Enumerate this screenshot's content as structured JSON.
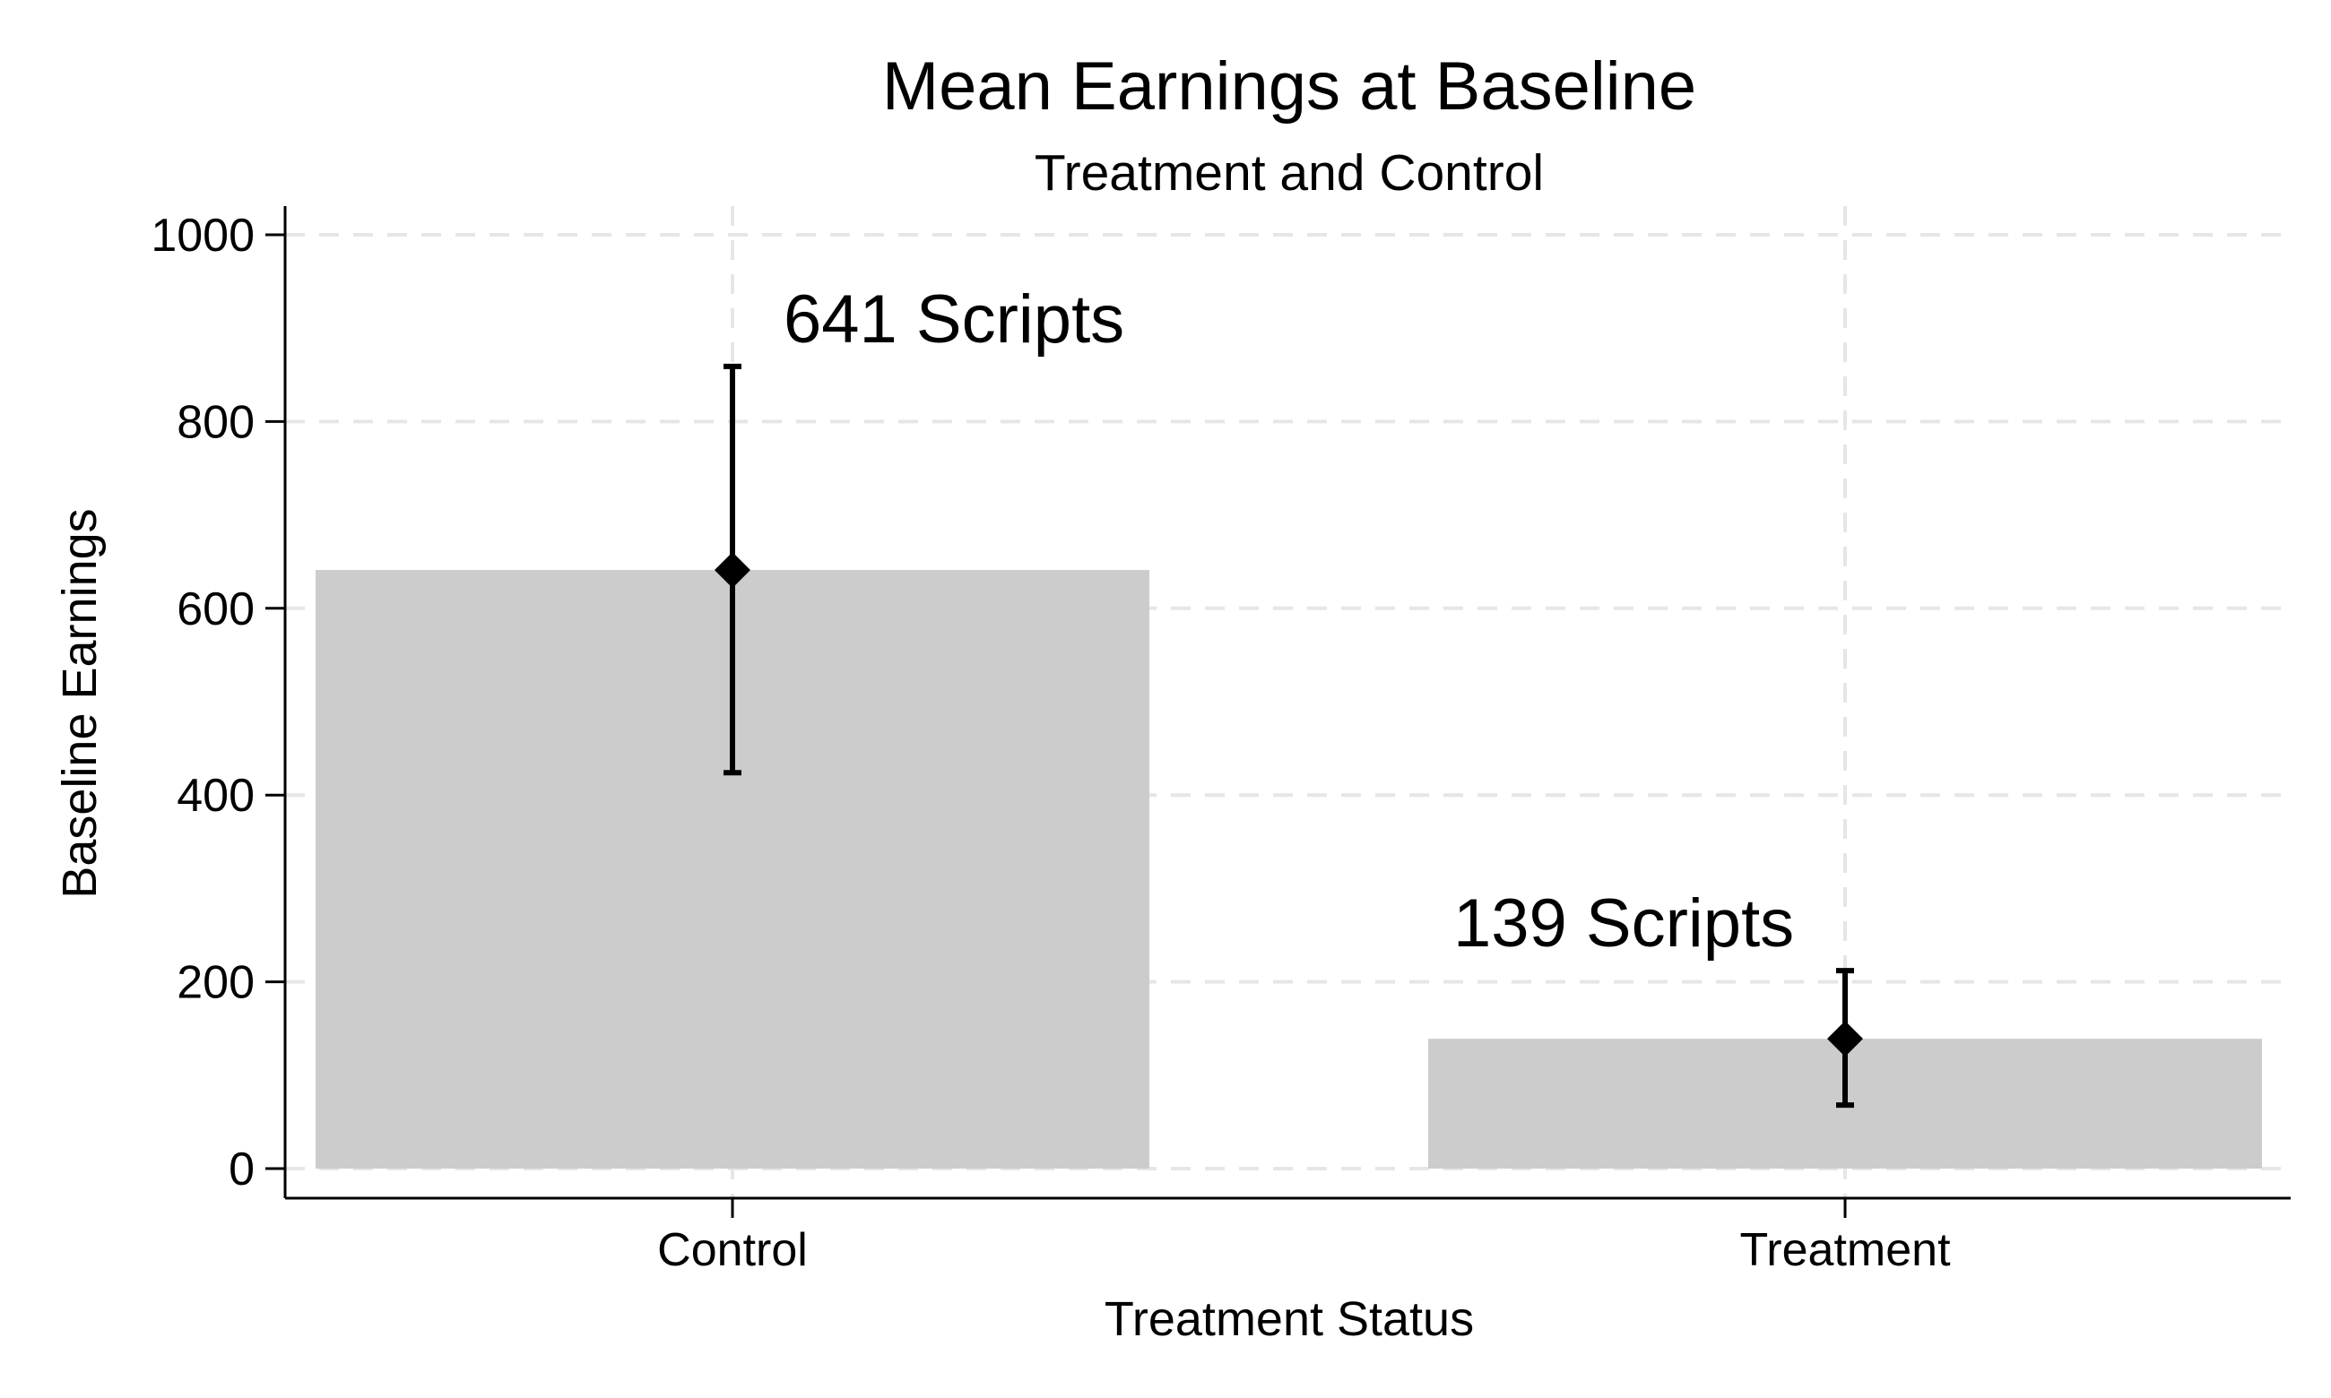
{
  "chart_data": {
    "type": "bar",
    "title": "Mean Earnings at Baseline",
    "subtitle": "Treatment and Control",
    "xlabel": "Treatment Status",
    "ylabel": "Baseline Earnings",
    "categories": [
      "Control",
      "Treatment"
    ],
    "values": [
      641,
      139
    ],
    "error_low": [
      424,
      68
    ],
    "error_high": [
      859,
      212
    ],
    "data_labels": [
      "641 Scripts",
      "139 Scripts"
    ],
    "ylim": [
      0,
      1000
    ],
    "yticks": [
      0,
      200,
      400,
      600,
      800,
      1000
    ],
    "ytick_labels": [
      "0",
      "200",
      "400",
      "600",
      "800",
      "1000"
    ],
    "grid": true,
    "legend": "none",
    "colors": {
      "bar": "#cccccc",
      "marker": "#000000",
      "grid": "#e6e6e6"
    }
  }
}
